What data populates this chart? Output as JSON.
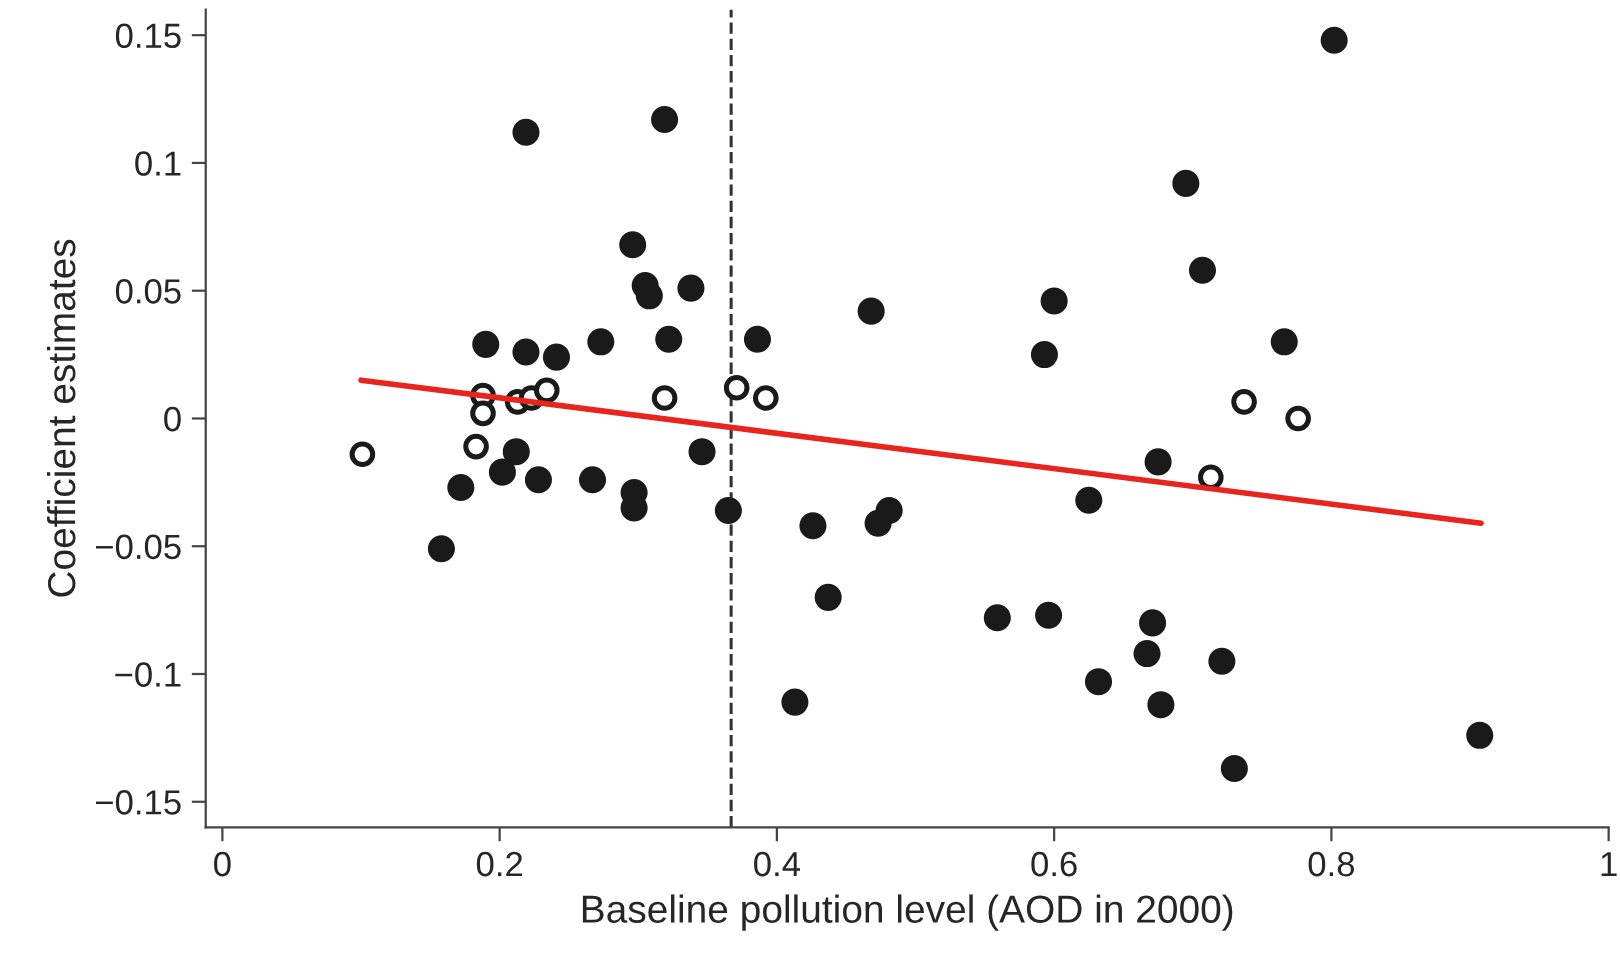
{
  "chart_data": {
    "type": "scatter",
    "xlabel": "Baseline pollution level (AOD in 2000)",
    "ylabel": "Coefficient estimates",
    "xlim": [
      -0.012,
      1.0
    ],
    "ylim": [
      -0.16,
      0.16
    ],
    "xticks": [
      0,
      0.2,
      0.4,
      0.6,
      0.8,
      1
    ],
    "yticks": [
      {
        "value": -0.15,
        "label": "−0.15"
      },
      {
        "value": -0.1,
        "label": "−0.1"
      },
      {
        "value": -0.05,
        "label": "−0.05"
      },
      0,
      0.05,
      0.1,
      0.15
    ],
    "grid": false,
    "series": [
      {
        "color": "#1a1a1a",
        "marker": "circle",
        "x": [
          0.219,
          0.319,
          0.296,
          0.305,
          0.308,
          0.338,
          0.19,
          0.219,
          0.241,
          0.273,
          0.322,
          0.386,
          0.212,
          0.346,
          0.172,
          0.202,
          0.228,
          0.267,
          0.297,
          0.297,
          0.365,
          0.158,
          0.413,
          0.802,
          0.695,
          0.707,
          0.6,
          0.468,
          0.593,
          0.766,
          0.675,
          0.625,
          0.426,
          0.473,
          0.481,
          0.437,
          0.559,
          0.596,
          0.671,
          0.667,
          0.721,
          0.632,
          0.677,
          0.73,
          0.907
        ],
        "values": [
          0.112,
          0.117,
          0.068,
          0.052,
          0.048,
          0.051,
          0.029,
          0.026,
          0.024,
          0.03,
          0.031,
          0.031,
          -0.013,
          -0.013,
          -0.027,
          -0.021,
          -0.024,
          -0.024,
          -0.029,
          -0.035,
          -0.036,
          -0.051,
          -0.111,
          0.148,
          0.092,
          0.058,
          0.046,
          0.042,
          0.025,
          0.03,
          -0.017,
          -0.032,
          -0.042,
          -0.041,
          -0.036,
          -0.07,
          -0.078,
          -0.077,
          -0.08,
          -0.092,
          -0.095,
          -0.103,
          -0.112,
          -0.137,
          -0.124
        ]
      },
      {
        "color": "#ffffff",
        "marker": "circle",
        "x": [
          0.101,
          0.188,
          0.188,
          0.183,
          0.213,
          0.223,
          0.234,
          0.319,
          0.371,
          0.392,
          0.737,
          0.776,
          0.713
        ],
        "values": [
          -0.014,
          0.009,
          0.002,
          -0.011,
          0.0065,
          0.008,
          0.011,
          0.008,
          0.012,
          0.008,
          0.0065,
          0.0,
          -0.023
        ]
      },
      {
        "type": "line",
        "color": "#e8241c",
        "x": [
          0.1,
          0.908
        ],
        "values": [
          0.015,
          -0.041
        ]
      }
    ],
    "ref_lines": [
      {
        "axis": "x",
        "value": 0.367,
        "color": "#333333",
        "line_style": "dashed"
      }
    ]
  }
}
